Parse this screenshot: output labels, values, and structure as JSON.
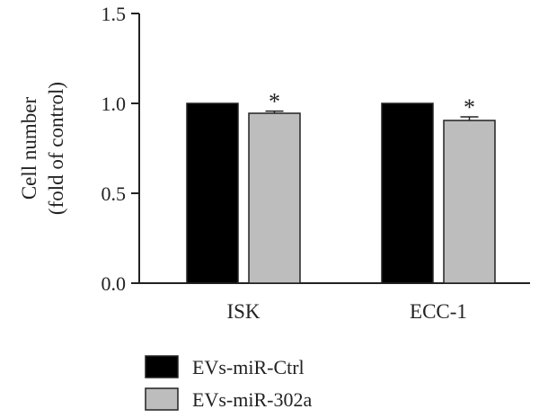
{
  "chart_data": {
    "type": "bar",
    "ylabel_lines": [
      "Cell number",
      "(fold of control)"
    ],
    "categories": [
      "ISK",
      "ECC-1"
    ],
    "series": [
      {
        "name": "EVs-miR-Ctrl",
        "values": [
          1.0,
          1.0
        ],
        "errors": [
          0,
          0
        ],
        "color": "#000000"
      },
      {
        "name": "EVs-miR-302a",
        "values": [
          0.945,
          0.905
        ],
        "errors": [
          0.012,
          0.02
        ],
        "color": "#bdbdbd"
      }
    ],
    "yticks": [
      "0.0",
      "0.5",
      "1.0",
      "1.5"
    ],
    "ylim": [
      0,
      1.5
    ],
    "significance": [
      "*",
      "*"
    ],
    "legend_placement": "bottom-left",
    "grid": false
  }
}
